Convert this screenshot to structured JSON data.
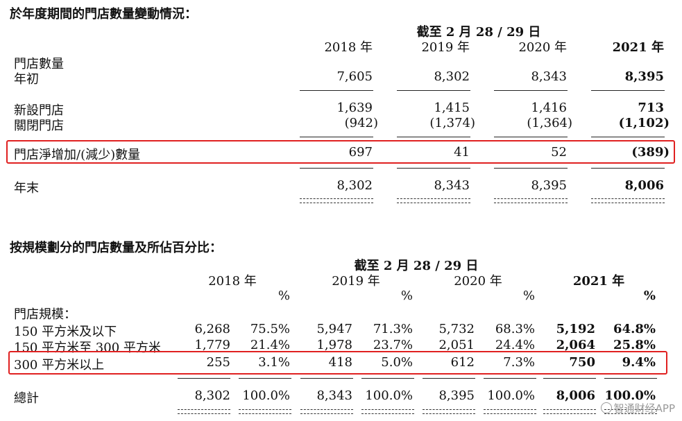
{
  "table1": {
    "title": "於年度期間的門店數量變動情況：",
    "date_header": "截至 2 月 28 / 29 日",
    "years": [
      "2018 年",
      "2019 年",
      "2020 年",
      "2021 年"
    ],
    "section_label": "門店數量",
    "rows": [
      {
        "label": "年初",
        "values": [
          "7,605",
          "8,302",
          "8,343",
          "8,395"
        ]
      },
      {
        "label": "新設門店",
        "values": [
          "1,639",
          "1,415",
          "1,416",
          "713"
        ]
      },
      {
        "label": "關閉門店",
        "values": [
          "(942)",
          "(1,374)",
          "(1,364)",
          "(1,102)"
        ]
      },
      {
        "label": "門店淨增加/(減少)數量",
        "values": [
          "697",
          "41",
          "52",
          "(389)"
        ]
      },
      {
        "label": "年末",
        "values": [
          "8,302",
          "8,343",
          "8,395",
          "8,006"
        ]
      }
    ]
  },
  "table2": {
    "title": "按規模劃分的門店數量及所佔百分比：",
    "date_header": "截至 2 月 28 / 29 日",
    "years": [
      "2018 年",
      "2019 年",
      "2020 年",
      "2021 年"
    ],
    "pct_symbol": "%",
    "section_label": "門店規模：",
    "rows": [
      {
        "label": "150 平方米及以下",
        "values": [
          "6,268",
          "75.5%",
          "5,947",
          "71.3%",
          "5,732",
          "68.3%",
          "5,192",
          "64.8%"
        ]
      },
      {
        "label": "150 平方米至 300 平方米",
        "values": [
          "1,779",
          "21.4%",
          "1,978",
          "23.7%",
          "2,051",
          "24.4%",
          "2,064",
          "25.8%"
        ]
      },
      {
        "label": "300 平方米以上",
        "values": [
          "255",
          "3.1%",
          "418",
          "5.0%",
          "612",
          "7.3%",
          "750",
          "9.4%"
        ]
      },
      {
        "label": "總計",
        "values": [
          "8,302",
          "100.0%",
          "8,343",
          "100.0%",
          "8,395",
          "100.0%",
          "8,006",
          "100.0%"
        ]
      }
    ]
  },
  "watermark": "智通财经APP",
  "colors": {
    "highlight": "#e02020",
    "text": "#111111",
    "watermark": "#9a9a9a"
  }
}
